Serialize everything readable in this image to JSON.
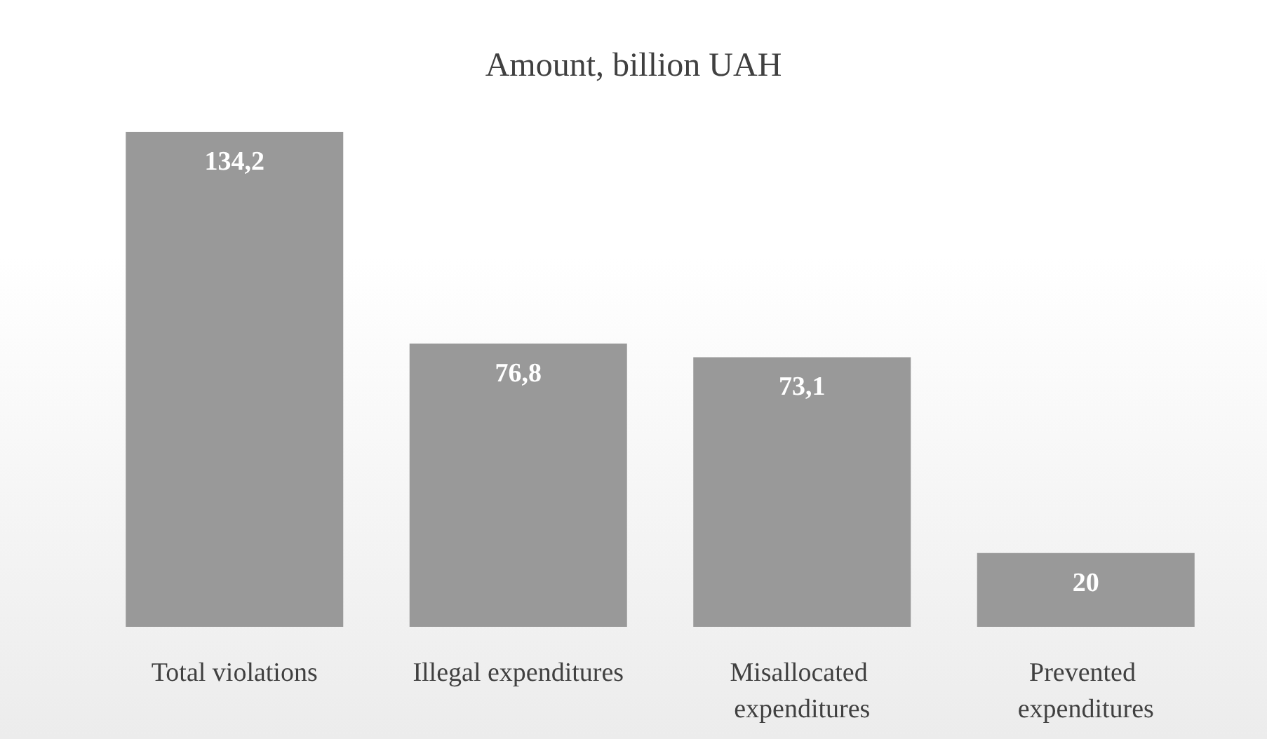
{
  "chart_data": {
    "type": "bar",
    "title": "Amount, billion UAH",
    "categories": [
      "Total violations",
      "Illegal expenditures",
      "Misallocated expenditures",
      "Prevented expenditures"
    ],
    "values": [
      134.2,
      76.8,
      73.1,
      20
    ],
    "value_labels": [
      "134,2",
      "76,8",
      "73,1",
      "20"
    ],
    "color": "#999999"
  }
}
